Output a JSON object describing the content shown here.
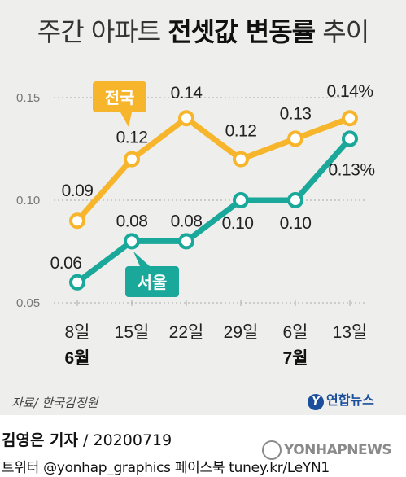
{
  "header": {
    "title_plain": "주간 아파트 ",
    "title_bold": "전셋값 변동률",
    "title_tail": " 추이"
  },
  "chart_data": {
    "type": "line",
    "categories": [
      "8일",
      "15일",
      "22일",
      "29일",
      "6일",
      "13일"
    ],
    "months": [
      "6월",
      "",
      "",
      "",
      "7월",
      ""
    ],
    "yticks": [
      "0.15",
      "0.10",
      "0.05"
    ],
    "ylim": [
      0.05,
      0.15
    ],
    "series": [
      {
        "name": "전국",
        "color": "#f7b52c",
        "values": [
          0.09,
          0.12,
          0.14,
          0.12,
          0.13,
          0.14
        ],
        "labels": [
          "0.09",
          "0.12",
          "0.14",
          "0.12",
          "0.13",
          "0.14%"
        ]
      },
      {
        "name": "서울",
        "color": "#1aa89b",
        "values": [
          0.06,
          0.08,
          0.08,
          0.1,
          0.1,
          0.13
        ],
        "labels": [
          "0.06",
          "0.08",
          "0.08",
          "0.10",
          "0.10",
          "0.13%"
        ]
      }
    ]
  },
  "source": "자료/ 한국감정원",
  "logo": {
    "mark": "Y",
    "text": "연합뉴스"
  },
  "credit": {
    "name": "김영은 기자",
    "date": " / 20200719"
  },
  "social": "트위터 @yonhap_graphics  페이스북 tuney.kr/LeYN1",
  "watermark": "YONHAPNEWS"
}
